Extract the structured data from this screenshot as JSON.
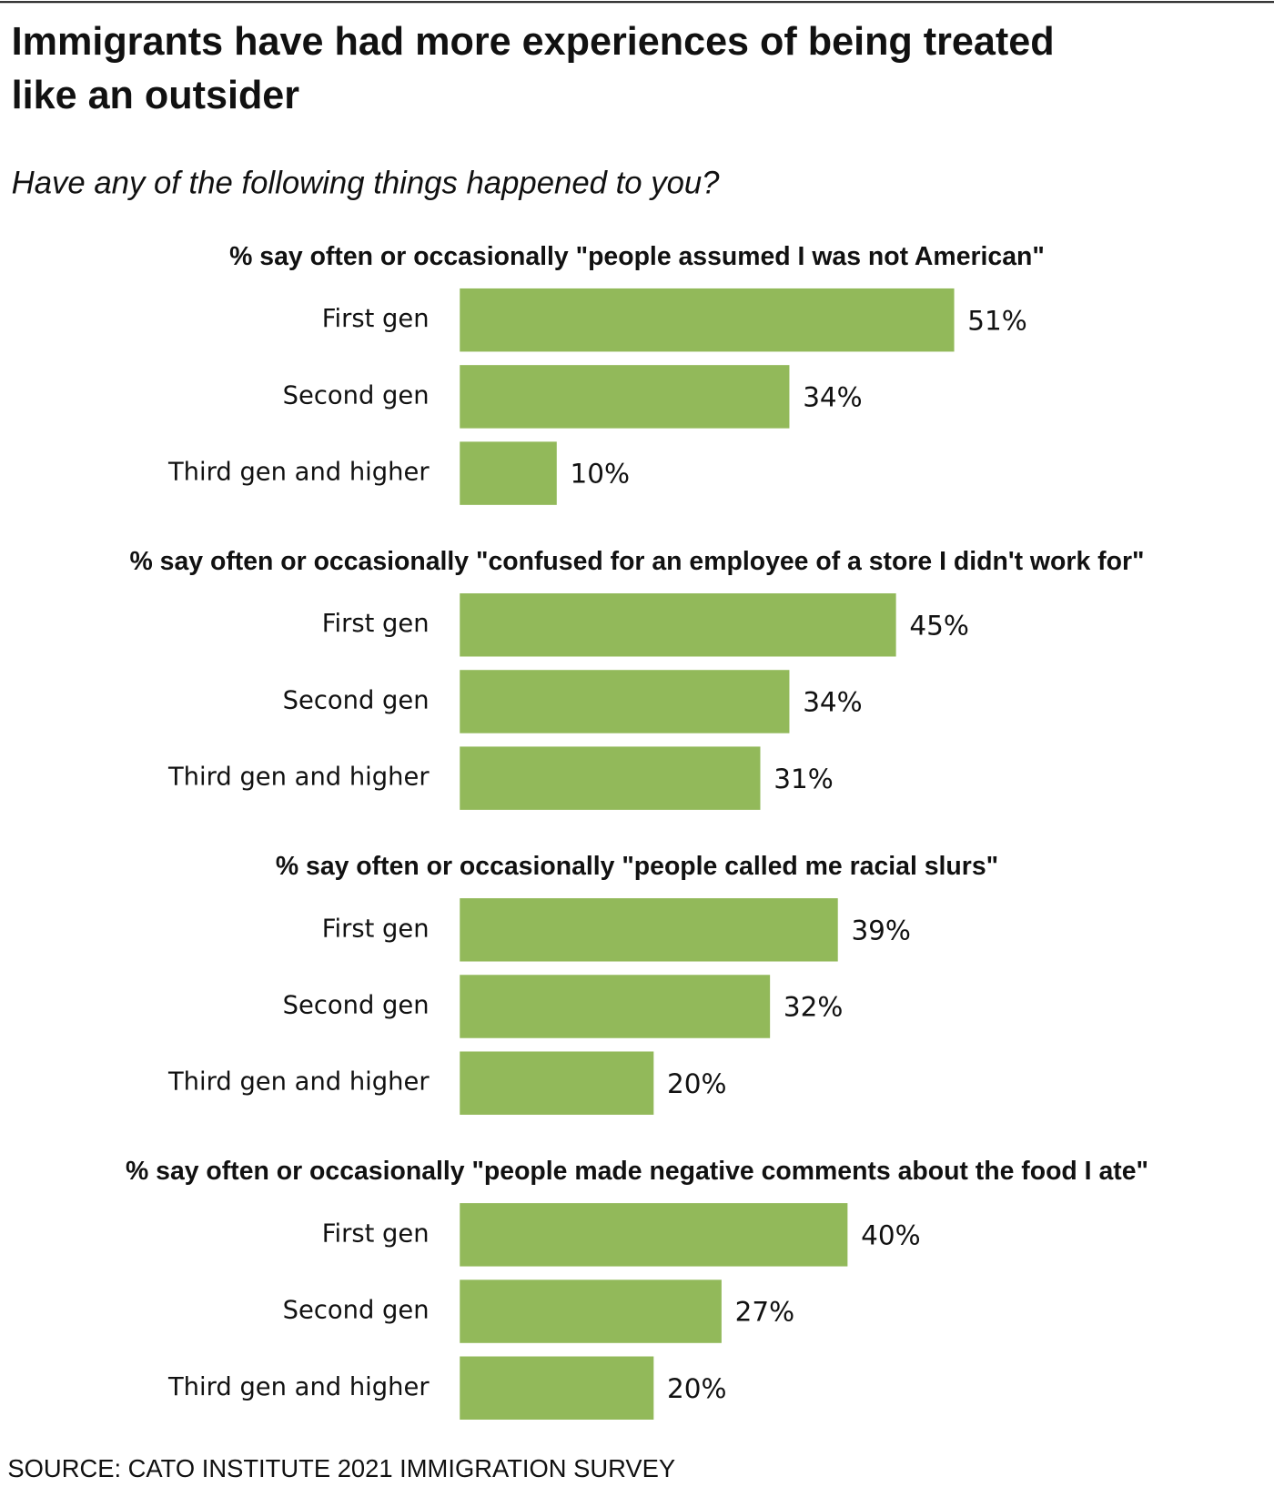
{
  "title": "Immigrants have had more experiences of being treated like an outsider",
  "subtitle": "Have any of the following things happened to you?",
  "source": "SOURCE: CATO INSTITUTE 2021 IMMIGRATION SURVEY",
  "chart_data": [
    {
      "type": "bar",
      "title": "% say often or occasionally \"people assumed I was not American\"",
      "categories": [
        "First gen",
        "Second gen",
        "Third gen and higher"
      ],
      "values": [
        51,
        34,
        10
      ],
      "value_labels": [
        "51%",
        "34%",
        "10%"
      ],
      "color": "#92b95a"
    },
    {
      "type": "bar",
      "title": "% say often or occasionally \"confused for an employee of a store I didn't work for\"",
      "categories": [
        "First gen",
        "Second gen",
        "Third gen and higher"
      ],
      "values": [
        45,
        34,
        31
      ],
      "value_labels": [
        "45%",
        "34%",
        "31%"
      ],
      "color": "#92b95a"
    },
    {
      "type": "bar",
      "title": "% say often or occasionally \"people called me racial slurs\"",
      "categories": [
        "First gen",
        "Second gen",
        "Third gen and higher"
      ],
      "values": [
        39,
        32,
        20
      ],
      "value_labels": [
        "39%",
        "32%",
        "20%"
      ],
      "color": "#92b95a"
    },
    {
      "type": "bar",
      "title": "% say often or occasionally \"people made negative comments about the food I ate\"",
      "categories": [
        "First gen",
        "Second gen",
        "Third gen and higher"
      ],
      "values": [
        40,
        27,
        20
      ],
      "value_labels": [
        "40%",
        "27%",
        "20%"
      ],
      "color": "#92b95a"
    }
  ]
}
